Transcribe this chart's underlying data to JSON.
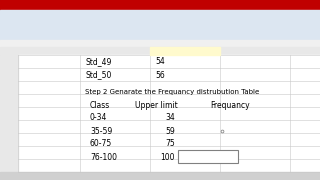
{
  "title_bar_color": "#c00000",
  "ribbon_bg": "#dce6f1",
  "formula_bar_bg": "#f0f0f0",
  "sheet_bg": "#ffffff",
  "row_col_bg": "#e8e8e8",
  "tab_bar_bg": "#d0d0d0",
  "outer_bg": "#404040",
  "grid_color": "#c8c8c8",
  "std_labels": [
    "Std_49",
    "Std_50"
  ],
  "std_values": [
    "54",
    "56"
  ],
  "step_text": "Step 2 Genarate the Frequancy distrubution Table",
  "table_headers": [
    "Class",
    "Upper limit",
    "Frequancy"
  ],
  "table_rows": [
    [
      "0-34",
      "34"
    ],
    [
      "35-59",
      "59"
    ],
    [
      "60-75",
      "75"
    ],
    [
      "76-100",
      "100"
    ]
  ],
  "cell_box_color": "#808080",
  "circle_color": "#888888"
}
